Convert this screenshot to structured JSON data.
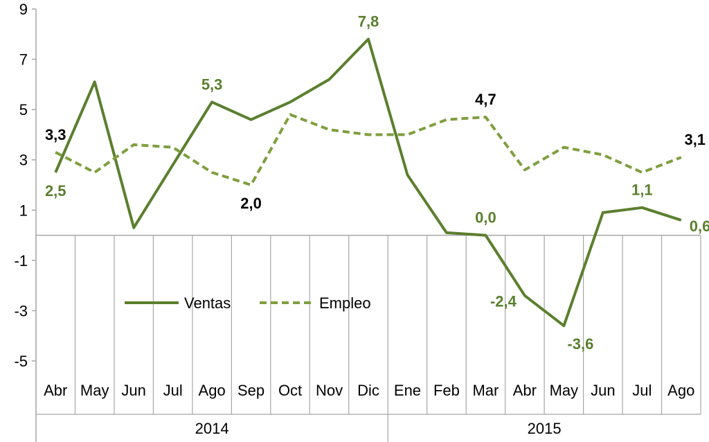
{
  "chart_data": {
    "type": "line",
    "title": "",
    "xlabel": "",
    "ylabel": "",
    "ylim": [
      -5,
      9
    ],
    "yticks": [
      9,
      7,
      5,
      3,
      1,
      -1,
      -3,
      -5
    ],
    "ytick_labels": [
      "9",
      "7",
      "5",
      "3",
      "1",
      "-1",
      "-3",
      "-5"
    ],
    "grid": false,
    "legend_position": "middle-left",
    "categories": [
      "Abr",
      "May",
      "Jun",
      "Jul",
      "Ago",
      "Sep",
      "Oct",
      "Nov",
      "Dic",
      "Ene",
      "Feb",
      "Mar",
      "Abr",
      "May",
      "Jun",
      "Jul",
      "Ago"
    ],
    "year_groups": [
      {
        "label": "2014",
        "start": 0,
        "end": 8
      },
      {
        "label": "2015",
        "start": 9,
        "end": 16
      }
    ],
    "series": [
      {
        "name": "Ventas",
        "style": "solid",
        "color": "#5b7f2e",
        "values": [
          2.5,
          6.1,
          0.3,
          2.8,
          5.3,
          4.6,
          5.3,
          6.2,
          7.8,
          2.4,
          0.1,
          0.0,
          -2.4,
          -3.6,
          0.9,
          1.1,
          0.6
        ]
      },
      {
        "name": "Empleo",
        "style": "dashed",
        "color": "#7f9f3e",
        "values": [
          3.3,
          2.5,
          3.6,
          3.5,
          2.5,
          2.0,
          4.8,
          4.2,
          4.0,
          4.0,
          4.6,
          4.7,
          2.6,
          3.5,
          3.2,
          2.5,
          3.1
        ]
      }
    ],
    "data_labels": [
      {
        "series": 0,
        "index": 0,
        "text": "2,5",
        "color": "#5b7f2e",
        "anchor": "below"
      },
      {
        "series": 0,
        "index": 4,
        "text": "5,3",
        "color": "#5b7f2e",
        "anchor": "above"
      },
      {
        "series": 0,
        "index": 8,
        "text": "7,8",
        "color": "#5b7f2e",
        "anchor": "above"
      },
      {
        "series": 0,
        "index": 11,
        "text": "0,0",
        "color": "#5b7f2e",
        "anchor": "above"
      },
      {
        "series": 0,
        "index": 12,
        "text": "-2,4",
        "color": "#5b7f2e",
        "anchor": "left"
      },
      {
        "series": 0,
        "index": 13,
        "text": "-3,6",
        "color": "#5b7f2e",
        "anchor": "below-right"
      },
      {
        "series": 0,
        "index": 15,
        "text": "1,1",
        "color": "#5b7f2e",
        "anchor": "above"
      },
      {
        "series": 0,
        "index": 16,
        "text": "0,6",
        "color": "#5b7f2e",
        "anchor": "right"
      },
      {
        "series": 1,
        "index": 0,
        "text": "3,3",
        "color": "#000000",
        "anchor": "above"
      },
      {
        "series": 1,
        "index": 5,
        "text": "2,0",
        "color": "#000000",
        "anchor": "below"
      },
      {
        "series": 1,
        "index": 11,
        "text": "4,7",
        "color": "#000000",
        "anchor": "above"
      },
      {
        "series": 1,
        "index": 16,
        "text": "3,1",
        "color": "#000000",
        "anchor": "above-right"
      }
    ],
    "axis_color": "#a6a6a6"
  }
}
